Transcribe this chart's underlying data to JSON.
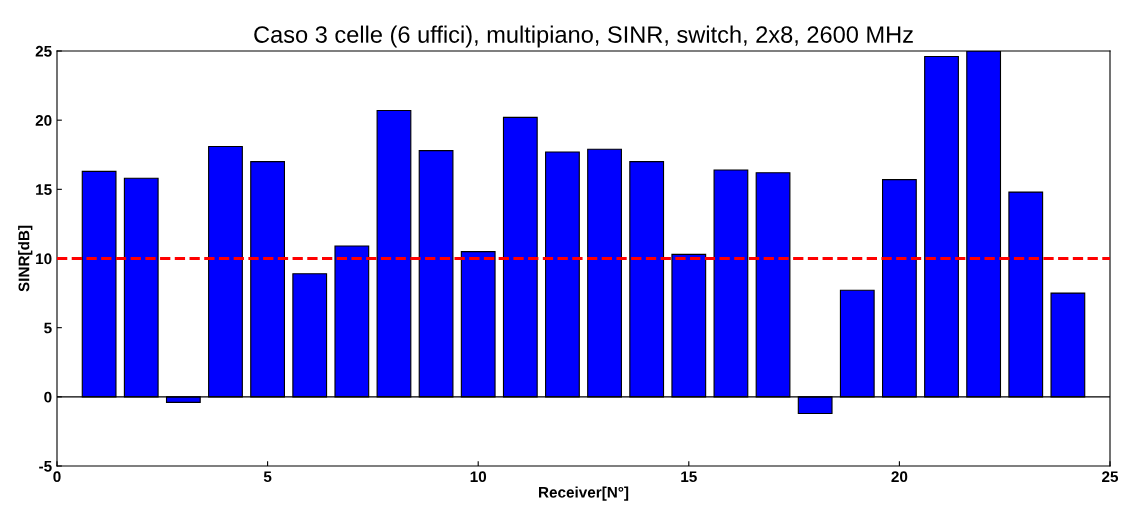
{
  "chart_data": {
    "type": "bar",
    "title": "Caso 3 celle (6 uffici), multipiano, SINR, switch, 2x8, 2600 MHz",
    "xlabel": "Receiver[N°]",
    "ylabel": "SINR[dB]",
    "x": [
      1,
      2,
      3,
      4,
      5,
      6,
      7,
      8,
      9,
      10,
      11,
      12,
      13,
      14,
      15,
      16,
      17,
      18,
      19,
      20,
      21,
      22,
      23,
      24
    ],
    "values": [
      16.3,
      15.8,
      -0.4,
      18.1,
      17.0,
      8.9,
      10.9,
      20.7,
      17.8,
      10.5,
      20.2,
      17.7,
      17.9,
      17.0,
      10.3,
      16.4,
      16.2,
      -1.2,
      7.7,
      15.7,
      24.6,
      25,
      14.8,
      7.5
    ],
    "color": "#0000ff",
    "xlim": [
      0,
      25
    ],
    "xticks": [
      0,
      5,
      10,
      15,
      20,
      25
    ],
    "ylim": [
      -5,
      25
    ],
    "yticks": [
      -5,
      0,
      5,
      10,
      15,
      20,
      25
    ],
    "ref_lines": [
      {
        "axis": "y",
        "value": 10,
        "color": "#ff0000",
        "line_style": "dashed"
      }
    ],
    "grid": false
  }
}
